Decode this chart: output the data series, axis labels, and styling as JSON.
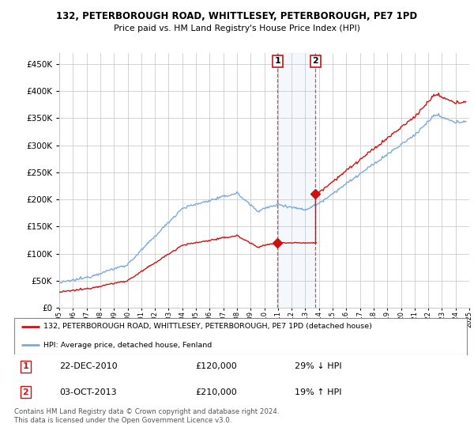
{
  "title": "132, PETERBOROUGH ROAD, WHITTLESEY, PETERBOROUGH, PE7 1PD",
  "subtitle": "Price paid vs. HM Land Registry's House Price Index (HPI)",
  "legend_line1": "132, PETERBOROUGH ROAD, WHITTLESEY, PETERBOROUGH, PE7 1PD (detached house)",
  "legend_line2": "HPI: Average price, detached house, Fenland",
  "annotation1_label": "1",
  "annotation1_date": "22-DEC-2010",
  "annotation1_price": "£120,000",
  "annotation1_hpi": "29% ↓ HPI",
  "annotation2_label": "2",
  "annotation2_date": "03-OCT-2013",
  "annotation2_price": "£210,000",
  "annotation2_hpi": "19% ↑ HPI",
  "footer": "Contains HM Land Registry data © Crown copyright and database right 2024.\nThis data is licensed under the Open Government Licence v3.0.",
  "sale1_year": 2010.97,
  "sale1_price": 120000,
  "sale2_year": 2013.75,
  "sale2_price": 210000,
  "hpi_color": "#7aaadd",
  "price_color": "#cc1111",
  "background_color": "#ffffff",
  "grid_color": "#cccccc",
  "ylim_max": 470000,
  "xlim_start": 1995,
  "xlim_end": 2025
}
